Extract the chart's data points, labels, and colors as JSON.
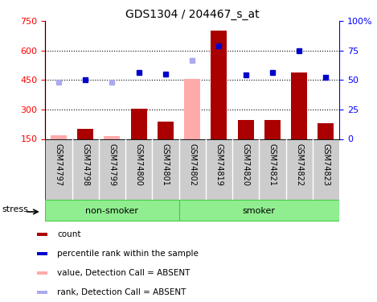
{
  "title": "GDS1304 / 204467_s_at",
  "samples": [
    "GSM74797",
    "GSM74798",
    "GSM74799",
    "GSM74800",
    "GSM74801",
    "GSM74802",
    "GSM74819",
    "GSM74820",
    "GSM74821",
    "GSM74822",
    "GSM74823"
  ],
  "bar_values": [
    170,
    200,
    163,
    305,
    240,
    455,
    700,
    248,
    248,
    490,
    232
  ],
  "bar_absent": [
    true,
    false,
    true,
    false,
    false,
    true,
    false,
    false,
    false,
    false,
    false
  ],
  "rank_values": [
    440,
    453,
    440,
    490,
    480,
    550,
    625,
    478,
    490,
    600,
    465
  ],
  "rank_absent": [
    true,
    false,
    true,
    false,
    false,
    true,
    false,
    false,
    false,
    false,
    false
  ],
  "left_ylim": [
    150,
    750
  ],
  "left_yticks": [
    150,
    300,
    450,
    600,
    750
  ],
  "right_ylim": [
    0,
    100
  ],
  "right_yticks": [
    0,
    25,
    50,
    75,
    100
  ],
  "right_yticklabels": [
    "0",
    "25",
    "50",
    "75",
    "100%"
  ],
  "non_smoker_count": 5,
  "smoker_count": 6,
  "bar_color_present": "#aa0000",
  "bar_color_absent": "#ffaaaa",
  "rank_color_present": "#0000cc",
  "rank_color_absent": "#aaaaee",
  "dotted_line_color": "#000000",
  "group_bar_color": "#90ee90",
  "group_bar_edge": "#44cc44",
  "sample_bg_color": "#cccccc",
  "stress_label": "stress",
  "non_smoker_label": "non-smoker",
  "smoker_label": "smoker",
  "legend_entries": [
    {
      "label": "count",
      "color": "#aa0000"
    },
    {
      "label": "percentile rank within the sample",
      "color": "#0000cc"
    },
    {
      "label": "value, Detection Call = ABSENT",
      "color": "#ffaaaa"
    },
    {
      "label": "rank, Detection Call = ABSENT",
      "color": "#aaaaee"
    }
  ]
}
